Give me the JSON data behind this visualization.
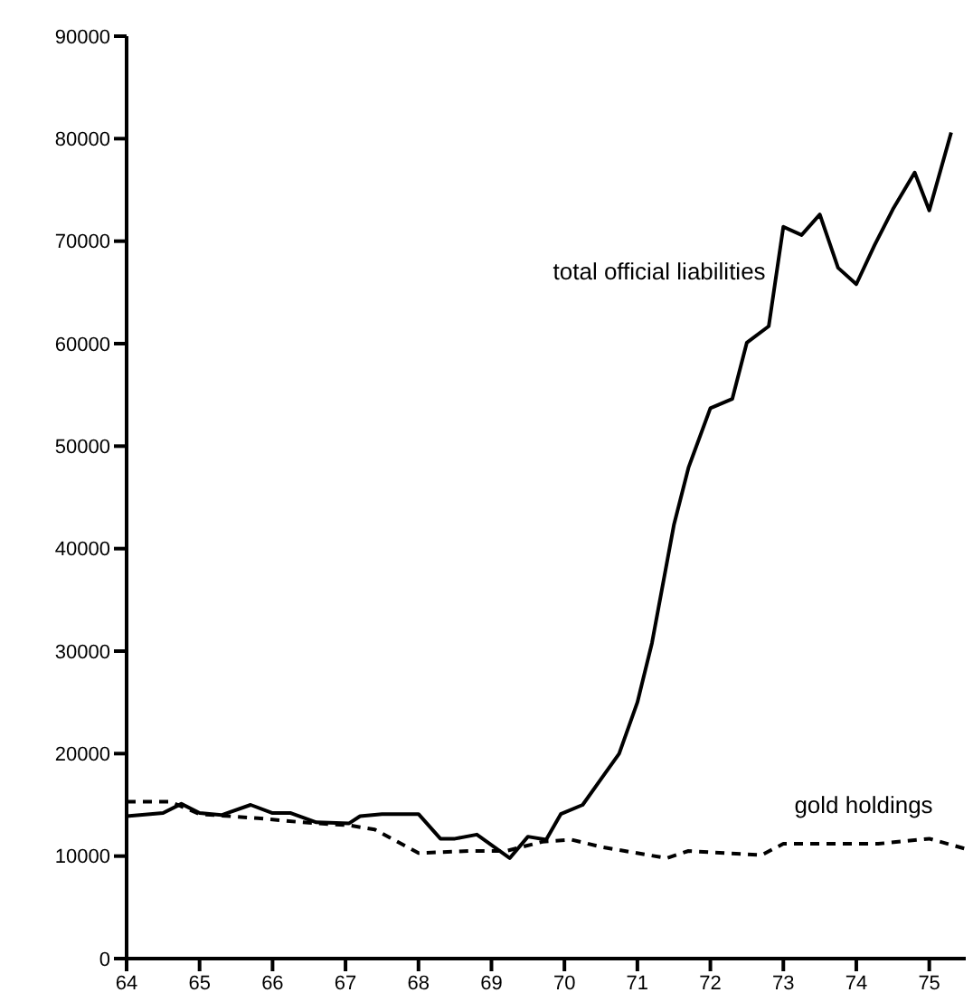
{
  "chart_data": {
    "type": "line",
    "xlim": [
      64,
      75.5
    ],
    "xticks": [
      64,
      65,
      66,
      67,
      68,
      69,
      70,
      71,
      72,
      73,
      74,
      75
    ],
    "ylim": [
      0,
      90000
    ],
    "yticks": [
      0,
      10000,
      20000,
      30000,
      40000,
      50000,
      60000,
      70000,
      80000,
      90000
    ],
    "grid": false,
    "legend": false,
    "marker": "none",
    "series": [
      {
        "name": "total official liabilities",
        "color": "#000000",
        "line_style": "solid",
        "x": [
          64,
          64.5,
          64.75,
          65,
          65.3,
          65.7,
          66,
          66.25,
          66.6,
          67.05,
          67.2,
          67.5,
          68,
          68.3,
          68.5,
          68.8,
          69.25,
          69.5,
          69.75,
          69.95,
          70.25,
          70.5,
          70.75,
          71,
          71.2,
          71.5,
          71.7,
          72,
          72.3,
          72.5,
          72.8,
          73,
          73.25,
          73.5,
          73.75,
          74,
          74.25,
          74.5,
          74.8,
          75,
          75.3
        ],
        "values": [
          13900,
          14200,
          15100,
          14200,
          14000,
          15000,
          14200,
          14200,
          13300,
          13200,
          13900,
          14100,
          14100,
          11700,
          11700,
          12100,
          9800,
          11900,
          11600,
          14100,
          15000,
          17500,
          20000,
          25000,
          30800,
          42300,
          47900,
          53700,
          54600,
          60100,
          61700,
          71400,
          70600,
          72600,
          67400,
          65800,
          69600,
          73100,
          76700,
          73000,
          80600
        ]
      },
      {
        "name": "gold holdings",
        "color": "#000000",
        "line_style": "dashed",
        "x": [
          64,
          64.6,
          65,
          65.8,
          66.4,
          67.05,
          67.4,
          68,
          68.7,
          69.2,
          69.7,
          70.1,
          70.5,
          71.4,
          71.7,
          72.7,
          73,
          74.3,
          75,
          75.5
        ],
        "values": [
          15300,
          15300,
          14100,
          13700,
          13300,
          13000,
          12600,
          10300,
          10500,
          10500,
          11400,
          11600,
          10900,
          9800,
          10500,
          10100,
          11200,
          11200,
          11700,
          10700
        ]
      }
    ]
  }
}
